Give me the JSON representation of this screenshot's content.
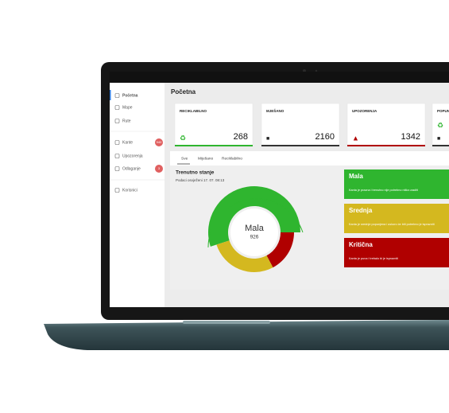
{
  "sidebar": {
    "items": [
      "Početna",
      "Mape",
      "Rute",
      "Kante",
      "Upozorenja",
      "Odlaganje",
      "Korisnici"
    ],
    "badges": {
      "kante": "940",
      "odlaganje": "3"
    }
  },
  "header": {
    "title": "Početna"
  },
  "cards": [
    {
      "label": "RECIKLABILNO",
      "value": "268"
    },
    {
      "label": "MJEŠANO",
      "value": "2160"
    },
    {
      "label": "UPOZORENJA",
      "value": "1342"
    },
    {
      "label": "POPUNJENOST"
    }
  ],
  "tabs": [
    "Sve",
    "Miješano",
    "Reciklabilno"
  ],
  "panel": {
    "title": "Trenutno stanje",
    "subtitle": "Podaci osvježeni 17. 07. 08:13",
    "center_label": "Mala",
    "center_value": "926"
  },
  "legend": [
    {
      "title": "Mala",
      "description": "Kanta je prazna i trenutno nije potrebno ništa uraditi"
    },
    {
      "title": "Srednja",
      "description": "Kanta je srednje popunjena i uskoro će biti potrebno je isprazniti"
    },
    {
      "title": "Kritična",
      "description": "Kanta je puna i trebalo bi je isprazniti"
    }
  ]
}
